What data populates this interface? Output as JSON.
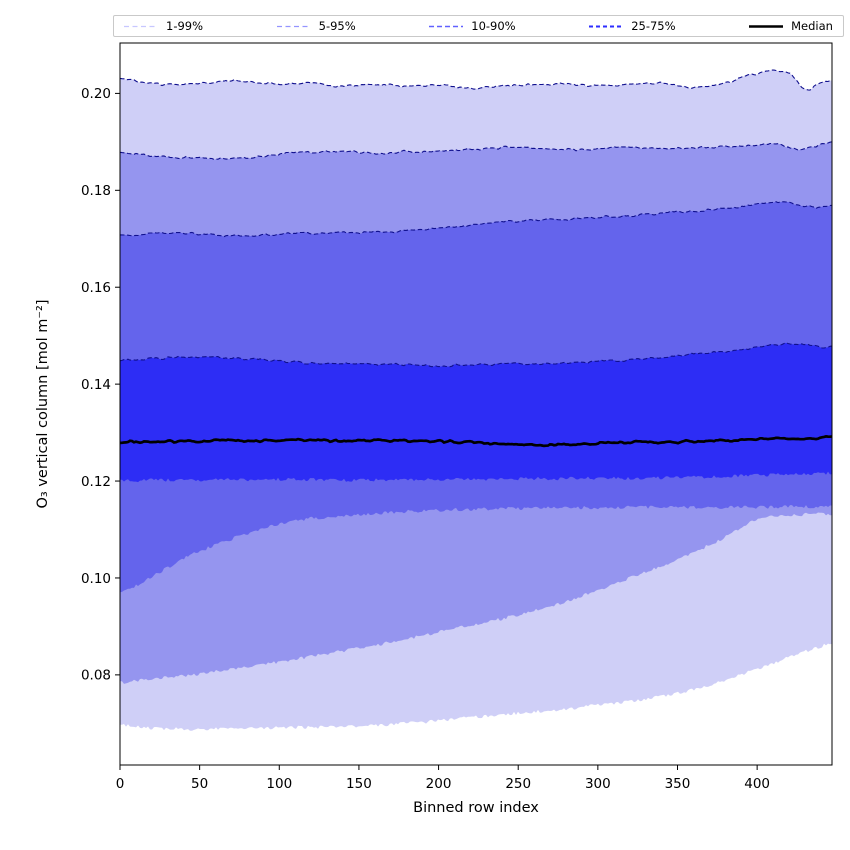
{
  "figure": {
    "background": "#ffffff",
    "frame_color": "#000000"
  },
  "legend": {
    "position": "top",
    "items": [
      {
        "label": "1-99%",
        "line_color": "rgba(0,0,255,0.22)",
        "dash": "5 3.5",
        "width": 1.3
      },
      {
        "label": "5-95%",
        "line_color": "rgba(0,0,255,0.42)",
        "dash": "5 3.5",
        "width": 1.3
      },
      {
        "label": "10-90%",
        "line_color": "rgba(0,0,255,0.62)",
        "dash": "5 3",
        "width": 1.6
      },
      {
        "label": "25-75%",
        "line_color": "rgba(0,0,255,0.82)",
        "dash": "4 3",
        "width": 2.0
      },
      {
        "label": "Median",
        "line_color": "#000000",
        "dash": "",
        "width": 2.6
      }
    ]
  },
  "chart_data": {
    "type": "area",
    "subtype": "percentile-fan",
    "title": "",
    "xlabel": "Binned row index",
    "ylabel": "O₃ vertical column [mol m⁻²]",
    "xlim": [
      0,
      447
    ],
    "ylim": [
      0.0614,
      0.2104
    ],
    "x_ticks": [
      0,
      50,
      100,
      150,
      200,
      250,
      300,
      350,
      400
    ],
    "y_ticks": [
      0.08,
      0.1,
      0.12,
      0.14,
      0.16,
      0.18,
      0.2
    ],
    "grid": false,
    "legend_position": "top",
    "x": [
      0,
      20,
      40,
      60,
      80,
      100,
      120,
      140,
      160,
      180,
      200,
      220,
      240,
      260,
      280,
      300,
      320,
      340,
      360,
      380,
      400,
      410,
      420,
      430,
      440,
      447
    ],
    "series": [
      {
        "name": "p1",
        "percentile": 1,
        "values": [
          0.0697,
          0.069,
          0.0688,
          0.0688,
          0.0689,
          0.0691,
          0.0692,
          0.0693,
          0.0695,
          0.07,
          0.0705,
          0.0712,
          0.0718,
          0.0724,
          0.073,
          0.0738,
          0.0746,
          0.0756,
          0.077,
          0.0788,
          0.0812,
          0.0824,
          0.0836,
          0.0848,
          0.0858,
          0.0866
        ]
      },
      {
        "name": "p5",
        "percentile": 5,
        "values": [
          0.0784,
          0.0791,
          0.0798,
          0.0807,
          0.0816,
          0.0827,
          0.0838,
          0.0849,
          0.0861,
          0.0874,
          0.0888,
          0.0902,
          0.0916,
          0.0932,
          0.0952,
          0.0975,
          0.1,
          0.1025,
          0.1052,
          0.1085,
          0.112,
          0.1126,
          0.113,
          0.1131,
          0.1132,
          0.1133
        ]
      },
      {
        "name": "p10",
        "percentile": 10,
        "values": [
          0.097,
          0.1002,
          0.104,
          0.1068,
          0.1092,
          0.1112,
          0.1123,
          0.1128,
          0.1133,
          0.1137,
          0.114,
          0.1142,
          0.1143,
          0.1144,
          0.1145,
          0.1145,
          0.1146,
          0.1146,
          0.1146,
          0.1146,
          0.1146,
          0.1146,
          0.1147,
          0.1147,
          0.1148,
          0.1148
        ]
      },
      {
        "name": "p25",
        "percentile": 25,
        "values": [
          0.12,
          0.1202,
          0.1202,
          0.1203,
          0.1203,
          0.1204,
          0.1203,
          0.1202,
          0.1202,
          0.1203,
          0.1203,
          0.1204,
          0.1204,
          0.1205,
          0.1205,
          0.1206,
          0.1206,
          0.1207,
          0.1208,
          0.121,
          0.1212,
          0.1213,
          0.1214,
          0.1214,
          0.1215,
          0.1217
        ]
      },
      {
        "name": "median",
        "percentile": 50,
        "values": [
          0.128,
          0.1281,
          0.1282,
          0.1283,
          0.1283,
          0.1284,
          0.1284,
          0.1284,
          0.1284,
          0.1283,
          0.1282,
          0.128,
          0.1277,
          0.1274,
          0.1276,
          0.1278,
          0.128,
          0.128,
          0.1282,
          0.1284,
          0.1286,
          0.1287,
          0.1288,
          0.1288,
          0.1289,
          0.1291
        ]
      },
      {
        "name": "p75",
        "percentile": 75,
        "values": [
          0.145,
          0.1452,
          0.1455,
          0.1456,
          0.1452,
          0.1448,
          0.1443,
          0.1442,
          0.144,
          0.144,
          0.1438,
          0.144,
          0.1442,
          0.1442,
          0.1444,
          0.1446,
          0.145,
          0.1456,
          0.1462,
          0.1468,
          0.1476,
          0.148,
          0.1484,
          0.1481,
          0.1477,
          0.1478
        ]
      },
      {
        "name": "p90",
        "percentile": 90,
        "values": [
          0.1706,
          0.171,
          0.1711,
          0.1708,
          0.1706,
          0.171,
          0.1711,
          0.1713,
          0.1714,
          0.1716,
          0.1721,
          0.1728,
          0.1734,
          0.1738,
          0.174,
          0.1744,
          0.1748,
          0.1752,
          0.1757,
          0.1762,
          0.177,
          0.1773,
          0.1776,
          0.1768,
          0.1765,
          0.1769
        ]
      },
      {
        "name": "p95",
        "percentile": 95,
        "values": [
          0.188,
          0.1871,
          0.1867,
          0.1865,
          0.1867,
          0.1874,
          0.188,
          0.1879,
          0.1877,
          0.188,
          0.1882,
          0.1885,
          0.1888,
          0.1886,
          0.1884,
          0.1886,
          0.1888,
          0.1886,
          0.1888,
          0.189,
          0.1893,
          0.1895,
          0.1889,
          0.1886,
          0.1896,
          0.1902
        ]
      },
      {
        "name": "p99",
        "percentile": 99,
        "values": [
          0.203,
          0.2021,
          0.2019,
          0.2024,
          0.2026,
          0.2018,
          0.2022,
          0.2015,
          0.202,
          0.2013,
          0.2018,
          0.2011,
          0.2015,
          0.2018,
          0.202,
          0.2016,
          0.202,
          0.2022,
          0.2012,
          0.2021,
          0.204,
          0.2046,
          0.2042,
          0.2008,
          0.202,
          0.2026
        ]
      }
    ],
    "bands": [
      {
        "label": "1-99%",
        "lower": "p1",
        "upper": "p99",
        "fill_color": "#cfcff7"
      },
      {
        "label": "5-95%",
        "lower": "p5",
        "upper": "p95",
        "fill_color": "#9595ef"
      },
      {
        "label": "10-90%",
        "lower": "p10",
        "upper": "p90",
        "fill_color": "#6464ec"
      },
      {
        "label": "25-75%",
        "lower": "p25",
        "upper": "p75",
        "fill_color": "#2d2df5"
      }
    ],
    "median_line": {
      "label": "Median",
      "color": "#000000",
      "width": 2.7
    },
    "boundary_line": {
      "color": "#10108e",
      "dash": "4.5 2.6",
      "width": 1.1
    }
  }
}
